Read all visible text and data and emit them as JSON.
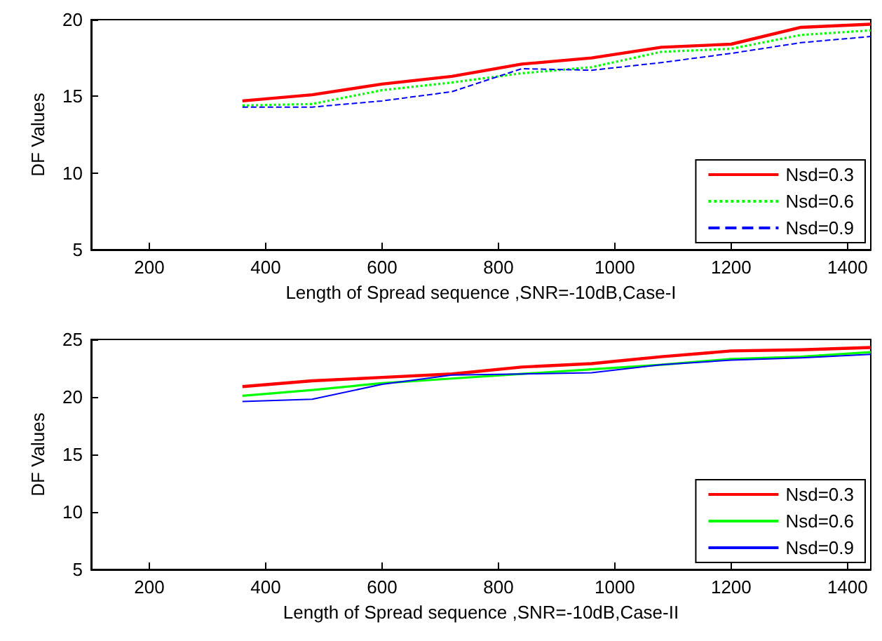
{
  "chart_data": [
    {
      "type": "line",
      "xlabel": "Length of Spread sequence ,SNR=-10dB,Case-I",
      "ylabel": "DF Values",
      "x": [
        360,
        480,
        600,
        720,
        840,
        960,
        1080,
        1200,
        1320,
        1440
      ],
      "xlim": [
        100,
        1440
      ],
      "xticks": [
        200,
        400,
        600,
        800,
        1000,
        1200,
        1400
      ],
      "ylim": [
        5,
        20
      ],
      "yticks": [
        5,
        10,
        15,
        20
      ],
      "grid": false,
      "legend": "bottom right",
      "marker": "none",
      "series": [
        {
          "name": "Nsd=0.3",
          "color": "#ff0000",
          "line_style": "solid",
          "values": [
            14.7,
            15.1,
            15.8,
            16.3,
            17.1,
            17.5,
            18.2,
            18.4,
            19.5,
            19.7
          ]
        },
        {
          "name": "Nsd=0.6",
          "color": "#00ff00",
          "line_style": "dotted",
          "values": [
            14.4,
            14.5,
            15.4,
            15.9,
            16.5,
            16.9,
            17.9,
            18.1,
            19.0,
            19.3
          ]
        },
        {
          "name": "Nsd=0.9",
          "color": "#0000ff",
          "line_style": "dashed",
          "values": [
            14.3,
            14.3,
            14.7,
            15.3,
            16.8,
            16.7,
            17.2,
            17.8,
            18.5,
            18.9
          ]
        }
      ]
    },
    {
      "type": "line",
      "xlabel": "Length of Spread sequence ,SNR=-10dB,Case-II",
      "ylabel": "DF Values",
      "x": [
        360,
        480,
        600,
        720,
        840,
        960,
        1080,
        1200,
        1320,
        1440
      ],
      "xlim": [
        100,
        1440
      ],
      "xticks": [
        200,
        400,
        600,
        800,
        1000,
        1200,
        1400
      ],
      "ylim": [
        5,
        25
      ],
      "yticks": [
        5,
        10,
        15,
        20,
        25
      ],
      "grid": false,
      "legend": "bottom right",
      "marker": "none",
      "series": [
        {
          "name": "Nsd=0.3",
          "color": "#ff0000",
          "line_style": "solid",
          "values": [
            20.9,
            21.4,
            21.7,
            22.0,
            22.6,
            22.9,
            23.5,
            24.0,
            24.1,
            24.3
          ]
        },
        {
          "name": "Nsd=0.6",
          "color": "#00ff00",
          "line_style": "solid",
          "values": [
            20.1,
            20.6,
            21.2,
            21.6,
            22.0,
            22.4,
            22.8,
            23.3,
            23.5,
            23.9
          ]
        },
        {
          "name": "Nsd=0.9",
          "color": "#0000ff",
          "line_style": "solid",
          "values": [
            19.6,
            19.8,
            21.1,
            21.9,
            22.0,
            22.1,
            22.8,
            23.2,
            23.4,
            23.7
          ]
        }
      ]
    }
  ]
}
